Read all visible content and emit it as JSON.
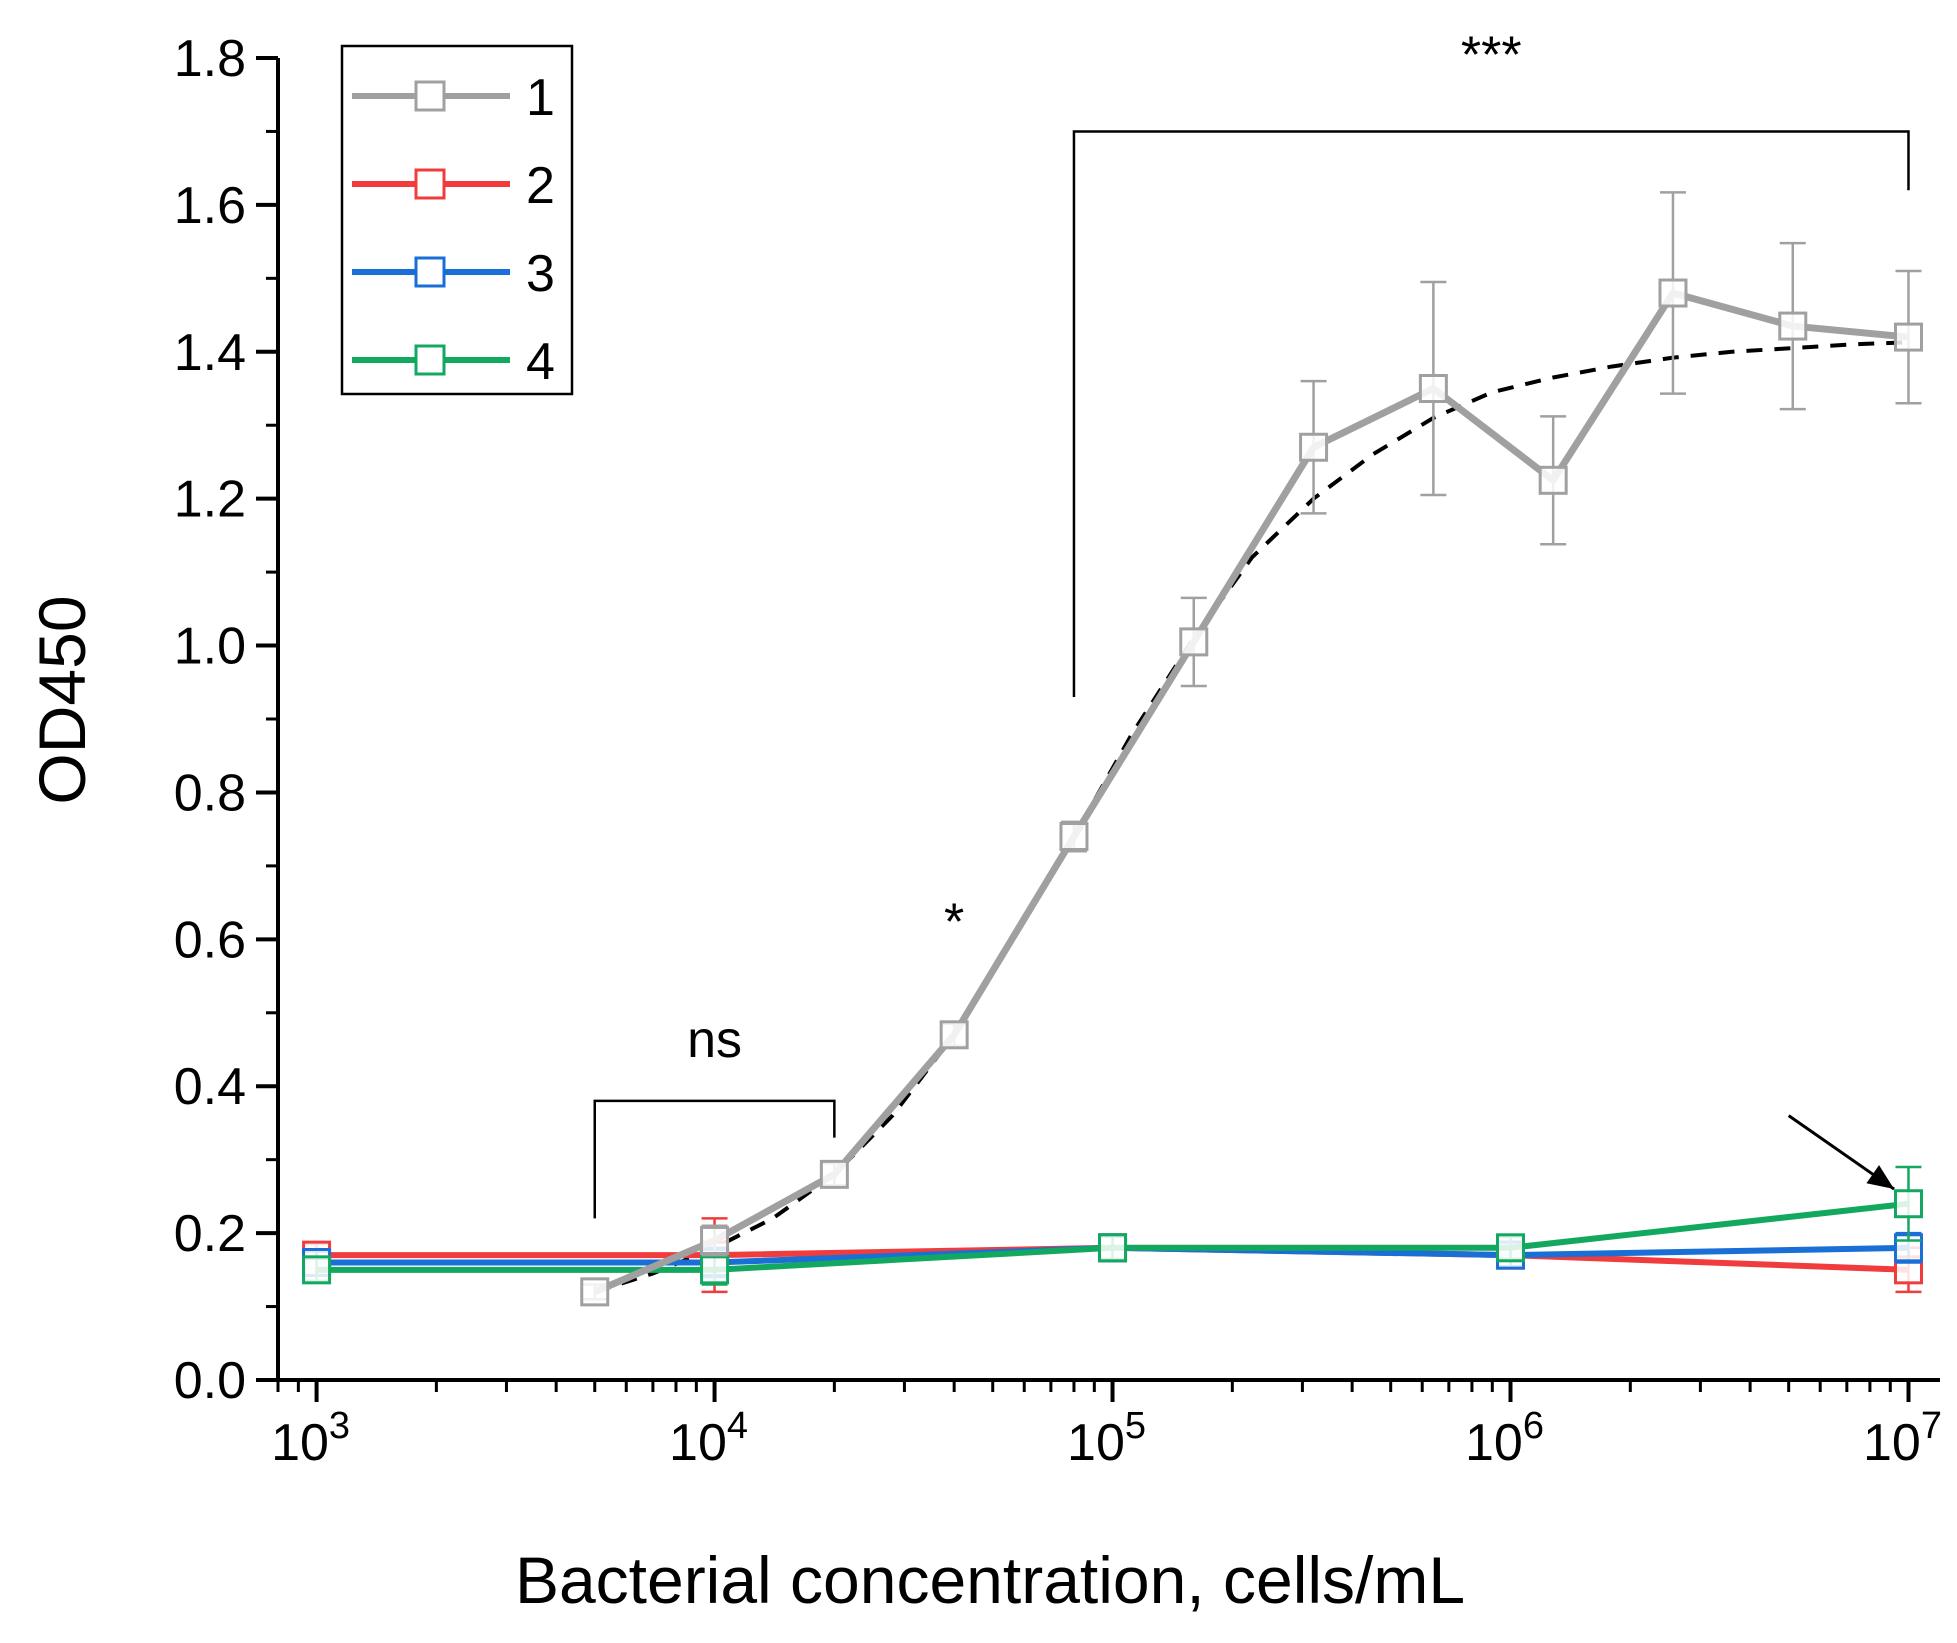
{
  "chart_data": {
    "type": "line",
    "title": "",
    "xlabel": "Bacterial concentration, cells/mL",
    "ylabel": "OD450",
    "x_scale": "log",
    "xlim": [
      800,
      12000000
    ],
    "ylim": [
      0,
      1.8
    ],
    "y_ticks": [
      0.0,
      0.2,
      0.4,
      0.6,
      0.8,
      1.0,
      1.2,
      1.4,
      1.6,
      1.8
    ],
    "y_tick_labels": [
      "0.0",
      "0.2",
      "0.4",
      "0.6",
      "0.8",
      "1.0",
      "1.2",
      "1.4",
      "1.6",
      "1.8"
    ],
    "x_ticks": [
      1000,
      10000,
      100000,
      1000000,
      10000000
    ],
    "x_tick_labels": [
      {
        "base": "10",
        "exp": "3"
      },
      {
        "base": "10",
        "exp": "4"
      },
      {
        "base": "10",
        "exp": "5"
      },
      {
        "base": "10",
        "exp": "6"
      },
      {
        "base": "10",
        "exp": "7"
      }
    ],
    "legend_position": "top-left",
    "series": [
      {
        "name": "1",
        "color": "#a0a0a0",
        "x": [
          5000,
          10000,
          20000,
          40000,
          80000,
          160000,
          320000,
          640000,
          1280000,
          2560000,
          5120000,
          10000000
        ],
        "y": [
          0.12,
          0.19,
          0.28,
          0.47,
          0.74,
          1.005,
          1.27,
          1.35,
          1.225,
          1.48,
          1.435,
          1.42
        ],
        "err": [
          0.01,
          0.02,
          0.015,
          0.015,
          0.02,
          0.06,
          0.09,
          0.145,
          0.087,
          0.137,
          0.113,
          0.09
        ]
      },
      {
        "name": "2",
        "color": "#f03c3c",
        "x": [
          1000,
          10000,
          100000,
          1000000,
          10000000
        ],
        "y": [
          0.17,
          0.17,
          0.18,
          0.17,
          0.15
        ],
        "err": [
          0.015,
          0.05,
          0.015,
          0.015,
          0.03
        ]
      },
      {
        "name": "3",
        "color": "#1a6fd6",
        "x": [
          1000,
          10000,
          100000,
          1000000,
          10000000
        ],
        "y": [
          0.16,
          0.16,
          0.18,
          0.17,
          0.18
        ],
        "err": [
          0.015,
          0.02,
          0.015,
          0.015,
          0.02
        ]
      },
      {
        "name": "4",
        "color": "#12a860",
        "x": [
          1000,
          10000,
          100000,
          1000000,
          10000000
        ],
        "y": [
          0.15,
          0.15,
          0.18,
          0.18,
          0.24
        ],
        "err": [
          0.015,
          0.02,
          0.015,
          0.015,
          0.05
        ]
      }
    ],
    "fit_curve": {
      "color": "#000000",
      "style": "dashed",
      "x": [
        5000,
        7000,
        10000,
        14000,
        20000,
        28000,
        40000,
        56000,
        80000,
        112000,
        160000,
        224000,
        320000,
        450000,
        640000,
        900000,
        1280000,
        1800000,
        2560000,
        3600000,
        5120000,
        7200000,
        10000000
      ],
      "y": [
        0.12,
        0.145,
        0.18,
        0.22,
        0.28,
        0.36,
        0.47,
        0.6,
        0.74,
        0.88,
        1.01,
        1.12,
        1.2,
        1.26,
        1.31,
        1.345,
        1.365,
        1.38,
        1.392,
        1.4,
        1.405,
        1.41,
        1.413
      ]
    },
    "annotations": {
      "ns": {
        "text": "ns",
        "bracket_x": [
          5000,
          20000
        ],
        "bracket_y": 0.38,
        "left_tail_y": 0.22,
        "right_tail_y": 0.33,
        "label_y": 0.44
      },
      "single_star": {
        "text": "*",
        "x": 40000,
        "y": 0.6
      },
      "triple_star": {
        "text": "***",
        "bracket_x": [
          80000,
          10000000
        ],
        "bracket_y": 1.7,
        "left_tail_y": 0.93,
        "right_tail_y": 1.62,
        "label_y": 1.78
      },
      "arrow": {
        "from_x": 5000000,
        "from_y": 0.36,
        "to_x": 9200000,
        "to_y": 0.26
      }
    }
  }
}
